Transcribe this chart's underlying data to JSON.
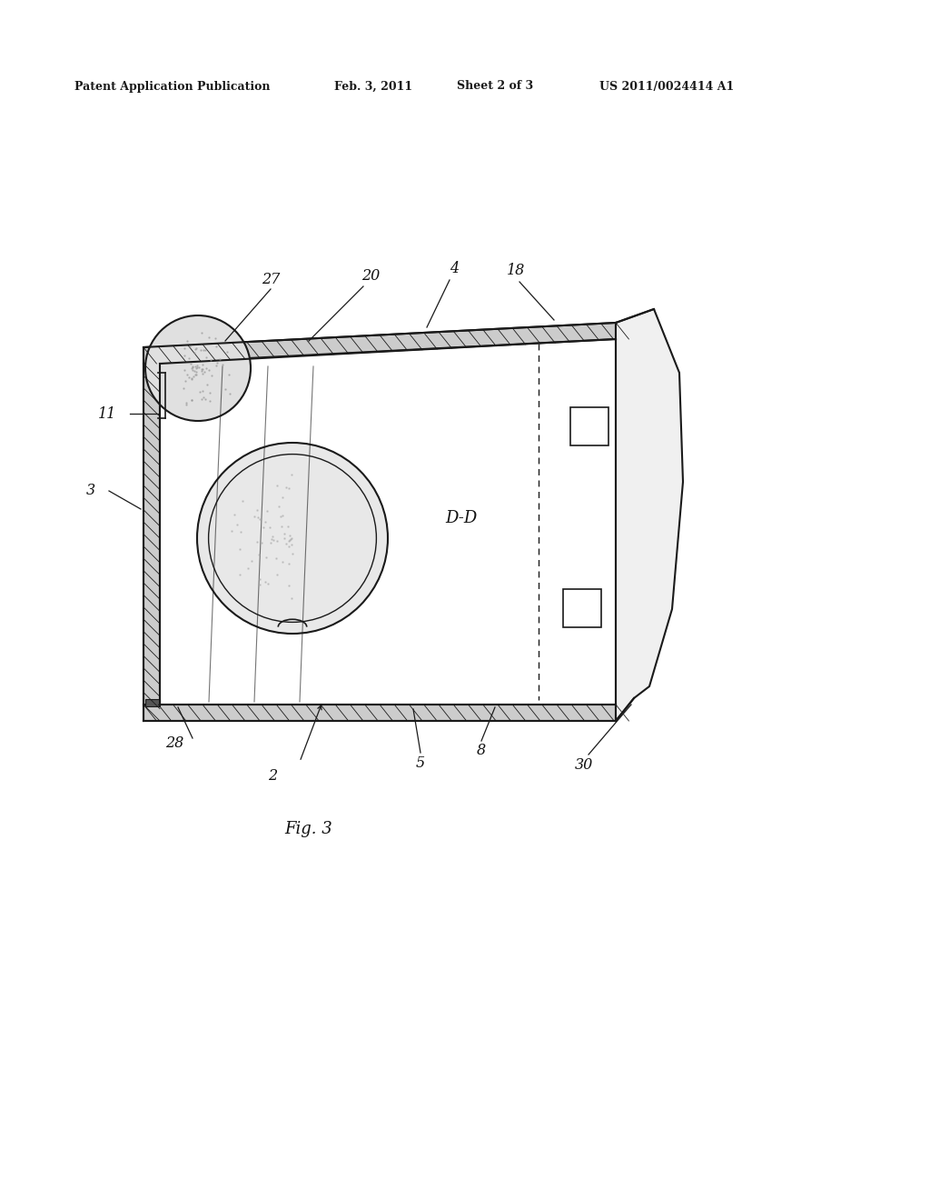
{
  "bg_color": "#ffffff",
  "header_text1": "Patent Application Publication",
  "header_text2": "Feb. 3, 2011",
  "header_text3": "Sheet 2 of 3",
  "header_text4": "US 2011/0024414 A1",
  "fig_label": "Fig. 3",
  "col": "#1a1a1a"
}
